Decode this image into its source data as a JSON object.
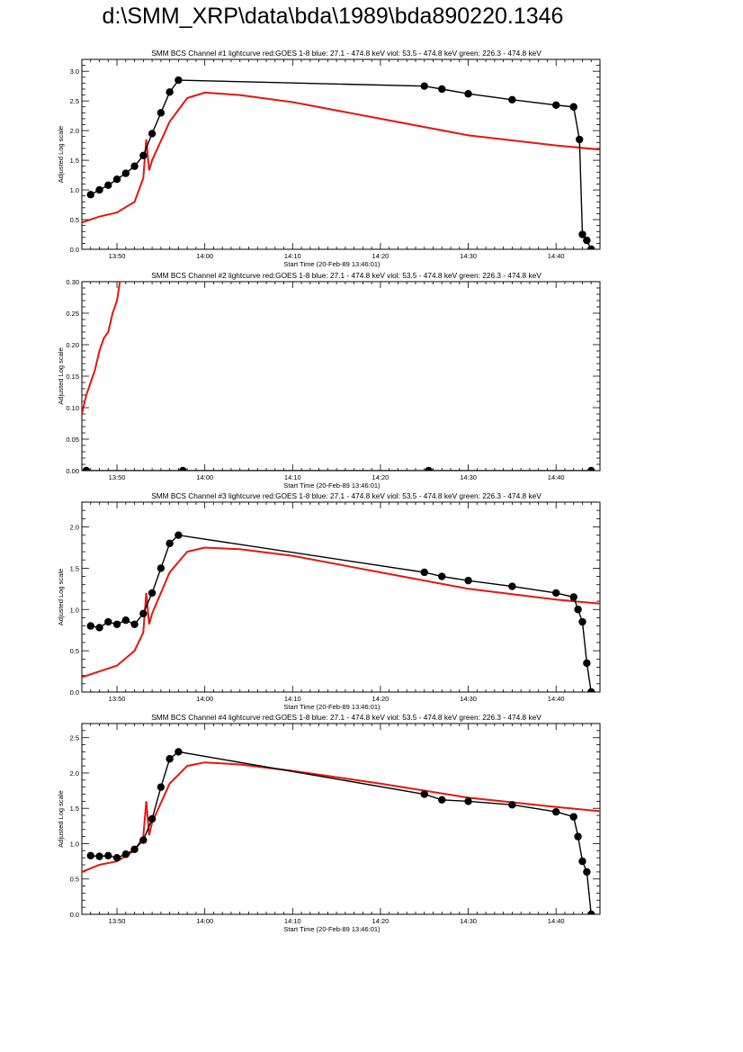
{
  "page": {
    "title": "d:\\SMM_XRP\\data\\bda\\1989\\bda890220.1346"
  },
  "colors": {
    "goes": "#e8140c",
    "detector": "#000000",
    "axes": "#000000"
  },
  "chart_data": [
    {
      "type": "line",
      "title": "SMM BCS Channel #1 lightcurve  red:GOES 1-8  blue: 27.1 - 474.8 keV  viol: 53.5 - 474.8 keV  green: 226.3 - 474.8 keV",
      "xlabel": "Start Time (20-Feb-89 13:46:01)",
      "ylabel": "Adjusted Log scale",
      "xlim": [
        "13:46:00",
        "14:45:00"
      ],
      "ylim": [
        0,
        3.2
      ],
      "x_ticks": [
        "13:50",
        "14:00",
        "14:10",
        "14:20",
        "14:30",
        "14:40"
      ],
      "y_ticks": [
        "0.0",
        "0.5",
        "1.0",
        "1.5",
        "2.0",
        "2.5",
        "3.0"
      ],
      "y_tick_values": [
        0,
        0.5,
        1.0,
        1.5,
        2.0,
        2.5,
        3.0
      ],
      "series": [
        {
          "role": "GOES",
          "color": "#e8140c",
          "x": [
            "13:46",
            "13:48",
            "13:50",
            "13:52",
            "13:53",
            "13:53:20",
            "13:53:40",
            "13:54",
            "13:56",
            "13:58",
            "14:00",
            "14:04",
            "14:10",
            "14:20",
            "14:30",
            "14:40",
            "14:45"
          ],
          "y": [
            0.45,
            0.55,
            0.62,
            0.8,
            1.2,
            1.85,
            1.33,
            1.5,
            2.15,
            2.55,
            2.64,
            2.6,
            2.48,
            2.2,
            1.92,
            1.75,
            1.68
          ]
        },
        {
          "role": "BCS",
          "color": "#000000",
          "x": [
            "13:47",
            "13:48",
            "13:49",
            "13:50",
            "13:51",
            "13:52",
            "13:53",
            "13:54",
            "13:55",
            "13:56",
            "13:57",
            "14:25",
            "14:27",
            "14:30",
            "14:35",
            "14:40",
            "14:42",
            "14:42:40",
            "14:43",
            "14:43:30",
            "14:44"
          ],
          "y": [
            0.92,
            1.0,
            1.08,
            1.18,
            1.28,
            1.4,
            1.58,
            1.95,
            2.3,
            2.65,
            2.85,
            2.75,
            2.7,
            2.62,
            2.52,
            2.43,
            2.4,
            1.85,
            0.25,
            0.15,
            0.0
          ]
        }
      ]
    },
    {
      "type": "line",
      "title": "SMM BCS Channel #2 lightcurve  red:GOES 1-8  blue: 27.1 - 474.8 keV  viol: 53.5 - 474.8 keV  green: 226.3 - 474.8 keV",
      "xlabel": "Start Time (20-Feb-89 13:46:01)",
      "ylabel": "Adjusted Log scale",
      "xlim": [
        "13:46:00",
        "14:45:00"
      ],
      "ylim": [
        0,
        0.3
      ],
      "x_ticks": [
        "13:50",
        "14:00",
        "14:10",
        "14:20",
        "14:30",
        "14:40"
      ],
      "y_ticks": [
        "0.00",
        "0.05",
        "0.10",
        "0.15",
        "0.20",
        "0.25",
        "0.30"
      ],
      "y_tick_values": [
        0,
        0.05,
        0.1,
        0.15,
        0.2,
        0.25,
        0.3
      ],
      "series": [
        {
          "role": "GOES",
          "color": "#e8140c",
          "x": [
            "13:46",
            "13:46:30",
            "13:47",
            "13:47:30",
            "13:48",
            "13:48:30",
            "13:49",
            "13:49:30",
            "13:50",
            "13:50:20"
          ],
          "y": [
            0.09,
            0.12,
            0.14,
            0.16,
            0.19,
            0.21,
            0.22,
            0.25,
            0.27,
            0.3
          ]
        },
        {
          "role": "BCS",
          "color": "#000000",
          "x": [
            "13:46:30",
            "13:57:30",
            "14:25:30",
            "14:44:00"
          ],
          "y": [
            0,
            0,
            0,
            0
          ]
        }
      ]
    },
    {
      "type": "line",
      "title": "SMM BCS Channel #3 lightcurve  red:GOES 1-8  blue: 27.1 - 474.8 keV  viol: 53.5 - 474.8 keV  green: 226.3 - 474.8 keV",
      "xlabel": "Start Time (20-Feb-89 13:46:01)",
      "ylabel": "Adjusted Log scale",
      "xlim": [
        "13:46:00",
        "14:45:00"
      ],
      "ylim": [
        0,
        2.3
      ],
      "x_ticks": [
        "13:50",
        "14:00",
        "14:10",
        "14:20",
        "14:30",
        "14:40"
      ],
      "y_ticks": [
        "0.0",
        "0.5",
        "1.0",
        "1.5",
        "2.0"
      ],
      "y_tick_values": [
        0,
        0.5,
        1.0,
        1.5,
        2.0
      ],
      "series": [
        {
          "role": "GOES",
          "color": "#e8140c",
          "x": [
            "13:46",
            "13:48",
            "13:50",
            "13:52",
            "13:53",
            "13:53:20",
            "13:53:40",
            "13:54",
            "13:56",
            "13:58",
            "14:00",
            "14:04",
            "14:10",
            "14:20",
            "14:30",
            "14:40",
            "14:45"
          ],
          "y": [
            0.18,
            0.25,
            0.32,
            0.5,
            0.72,
            1.2,
            0.82,
            0.95,
            1.45,
            1.7,
            1.75,
            1.73,
            1.65,
            1.45,
            1.25,
            1.12,
            1.07
          ]
        },
        {
          "role": "BCS",
          "color": "#000000",
          "x": [
            "13:47",
            "13:48",
            "13:49",
            "13:50",
            "13:51",
            "13:52",
            "13:53",
            "13:54",
            "13:55",
            "13:56",
            "13:57",
            "14:25",
            "14:27",
            "14:30",
            "14:35",
            "14:40",
            "14:42",
            "14:42:30",
            "14:43",
            "14:43:30",
            "14:44"
          ],
          "y": [
            0.8,
            0.78,
            0.85,
            0.82,
            0.87,
            0.82,
            0.95,
            1.2,
            1.5,
            1.8,
            1.9,
            1.45,
            1.4,
            1.35,
            1.28,
            1.2,
            1.15,
            1.0,
            0.85,
            0.35,
            0.0
          ]
        }
      ]
    },
    {
      "type": "line",
      "title": "SMM BCS Channel #4 lightcurve  red:GOES 1-8  blue: 27.1 - 474.8 keV  viol: 53.5 - 474.8 keV  green: 226.3 - 474.8 keV",
      "xlabel": "Start Time (20-Feb-89 13:46:01)",
      "ylabel": "Adjusted Log scale",
      "xlim": [
        "13:46:00",
        "14:45:00"
      ],
      "ylim": [
        0,
        2.7
      ],
      "x_ticks": [
        "13:50",
        "14:00",
        "14:10",
        "14:20",
        "14:30",
        "14:40"
      ],
      "y_ticks": [
        "0.0",
        "0.5",
        "1.0",
        "1.5",
        "2.0",
        "2.5"
      ],
      "y_tick_values": [
        0,
        0.5,
        1.0,
        1.5,
        2.0,
        2.5
      ],
      "series": [
        {
          "role": "GOES",
          "color": "#e8140c",
          "x": [
            "13:46",
            "13:48",
            "13:50",
            "13:52",
            "13:53",
            "13:53:20",
            "13:53:40",
            "13:54",
            "13:56",
            "13:58",
            "14:00",
            "14:04",
            "14:10",
            "14:20",
            "14:30",
            "14:40",
            "14:45"
          ],
          "y": [
            0.6,
            0.7,
            0.75,
            0.9,
            1.1,
            1.6,
            1.12,
            1.3,
            1.85,
            2.1,
            2.15,
            2.12,
            2.03,
            1.85,
            1.65,
            1.52,
            1.46
          ]
        },
        {
          "role": "BCS",
          "color": "#000000",
          "x": [
            "13:47",
            "13:48",
            "13:49",
            "13:50",
            "13:51",
            "13:52",
            "13:53",
            "13:54",
            "13:55",
            "13:56",
            "13:57",
            "14:25",
            "14:27",
            "14:30",
            "14:35",
            "14:40",
            "14:42",
            "14:42:30",
            "14:43",
            "14:43:30",
            "14:44"
          ],
          "y": [
            0.83,
            0.82,
            0.83,
            0.8,
            0.85,
            0.92,
            1.05,
            1.35,
            1.8,
            2.2,
            2.3,
            1.7,
            1.62,
            1.6,
            1.55,
            1.45,
            1.38,
            1.1,
            0.75,
            0.6,
            0.0
          ]
        }
      ]
    }
  ]
}
